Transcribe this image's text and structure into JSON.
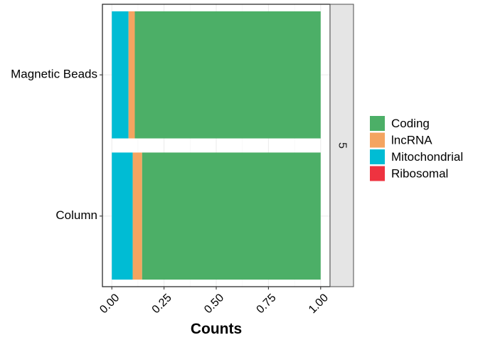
{
  "chart_data": {
    "type": "bar",
    "orientation": "horizontal",
    "stacked": true,
    "xlabel": "Counts",
    "ylabel": "",
    "categories": [
      "Magnetic Beads",
      "Column"
    ],
    "series": [
      {
        "name": "Mitochondrial",
        "values": [
          0.08,
          0.1
        ],
        "color": "#00BCD4"
      },
      {
        "name": "lncRNA",
        "values": [
          0.03,
          0.045
        ],
        "color": "#F4A460"
      },
      {
        "name": "Coding",
        "values": [
          0.89,
          0.855
        ],
        "color": "#4CAF67"
      },
      {
        "name": "Ribosomal",
        "values": [
          0.0,
          0.0
        ],
        "color": "#EE3340"
      }
    ],
    "legend_order": [
      "Coding",
      "lncRNA",
      "Mitochondrial",
      "Ribosomal"
    ],
    "xlim": [
      -0.045,
      1.045
    ],
    "xticks": [
      0.0,
      0.25,
      0.5,
      0.75,
      1.0
    ],
    "xtick_labels": [
      "0.00",
      "0.25",
      "0.50",
      "0.75",
      "1.00"
    ],
    "facet_label": "5",
    "grid": true,
    "legend_position": "right"
  }
}
